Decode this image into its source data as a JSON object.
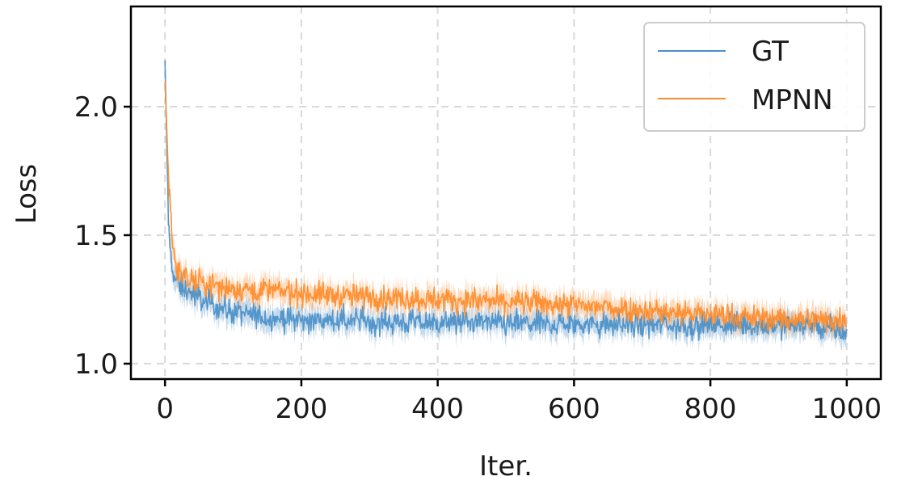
{
  "chart_data": {
    "type": "line",
    "title": "",
    "xlabel": "Iter.",
    "ylabel": "Loss",
    "xlim": [
      -50,
      1050
    ],
    "ylim": [
      0.94,
      2.39
    ],
    "xticks": [
      0,
      200,
      400,
      600,
      800,
      1000
    ],
    "yticks": [
      1.0,
      1.5,
      2.0
    ],
    "xtick_labels": [
      "0",
      "200",
      "400",
      "600",
      "800",
      "1000"
    ],
    "ytick_labels": [
      "1.0",
      "1.5",
      "2.0"
    ],
    "grid": true,
    "legend_position": "top-right",
    "shaded_band": true,
    "series": [
      {
        "name": "GT",
        "color": "#4a90c8",
        "x": [
          0,
          5,
          10,
          15,
          20,
          30,
          40,
          50,
          60,
          80,
          100,
          125,
          150,
          175,
          200,
          250,
          300,
          350,
          400,
          450,
          500,
          550,
          600,
          650,
          700,
          750,
          800,
          850,
          900,
          950,
          1000
        ],
        "y": [
          2.18,
          1.55,
          1.38,
          1.33,
          1.31,
          1.29,
          1.27,
          1.26,
          1.24,
          1.22,
          1.2,
          1.19,
          1.18,
          1.175,
          1.17,
          1.165,
          1.165,
          1.16,
          1.16,
          1.16,
          1.155,
          1.155,
          1.155,
          1.15,
          1.15,
          1.15,
          1.15,
          1.15,
          1.15,
          1.15,
          1.12
        ]
      },
      {
        "name": "MPNN",
        "color": "#ff8c2a",
        "x": [
          0,
          5,
          10,
          15,
          20,
          30,
          40,
          50,
          60,
          80,
          100,
          125,
          150,
          175,
          200,
          250,
          300,
          350,
          400,
          450,
          500,
          550,
          600,
          650,
          700,
          750,
          800,
          850,
          900,
          950,
          1000
        ],
        "y": [
          2.1,
          1.75,
          1.5,
          1.4,
          1.36,
          1.33,
          1.32,
          1.315,
          1.31,
          1.3,
          1.29,
          1.29,
          1.285,
          1.28,
          1.275,
          1.265,
          1.26,
          1.255,
          1.25,
          1.245,
          1.24,
          1.235,
          1.225,
          1.22,
          1.21,
          1.2,
          1.19,
          1.18,
          1.175,
          1.17,
          1.17
        ]
      }
    ]
  }
}
